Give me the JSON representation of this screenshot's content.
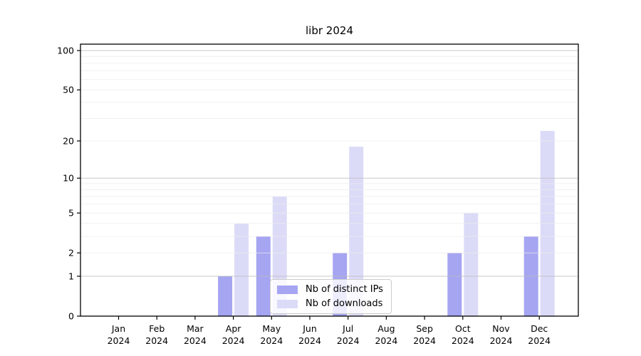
{
  "chart_data": {
    "type": "bar",
    "title": "libr 2024",
    "year_suffix": "2024",
    "categories": [
      "Jan",
      "Feb",
      "Mar",
      "Apr",
      "May",
      "Jun",
      "Jul",
      "Aug",
      "Sep",
      "Oct",
      "Nov",
      "Dec"
    ],
    "series": [
      {
        "name": "Nb of distinct IPs",
        "color": "#a5a5f2",
        "values": [
          0,
          0,
          0,
          1,
          3,
          0,
          2,
          0,
          0,
          2,
          0,
          3
        ]
      },
      {
        "name": "Nb of downloads",
        "color": "#dbdbf8",
        "values": [
          0,
          0,
          0,
          4,
          7,
          0,
          18,
          0,
          0,
          5,
          0,
          24
        ]
      }
    ],
    "yscale": "log1p",
    "ylim": [
      0,
      112
    ],
    "yticks": [
      0,
      1,
      2,
      5,
      10,
      20,
      50,
      100
    ],
    "grid_major_values": [
      1,
      10,
      100
    ],
    "grid_minor_values": [
      2,
      3,
      4,
      5,
      6,
      7,
      8,
      9,
      20,
      30,
      40,
      50,
      60,
      70,
      80,
      90
    ],
    "legend_position": "lower center",
    "colors": {
      "grid_major": "#bcbcbc",
      "grid_minor": "#ececec",
      "axis": "#000000",
      "text": "#000000",
      "background": "#ffffff"
    }
  }
}
